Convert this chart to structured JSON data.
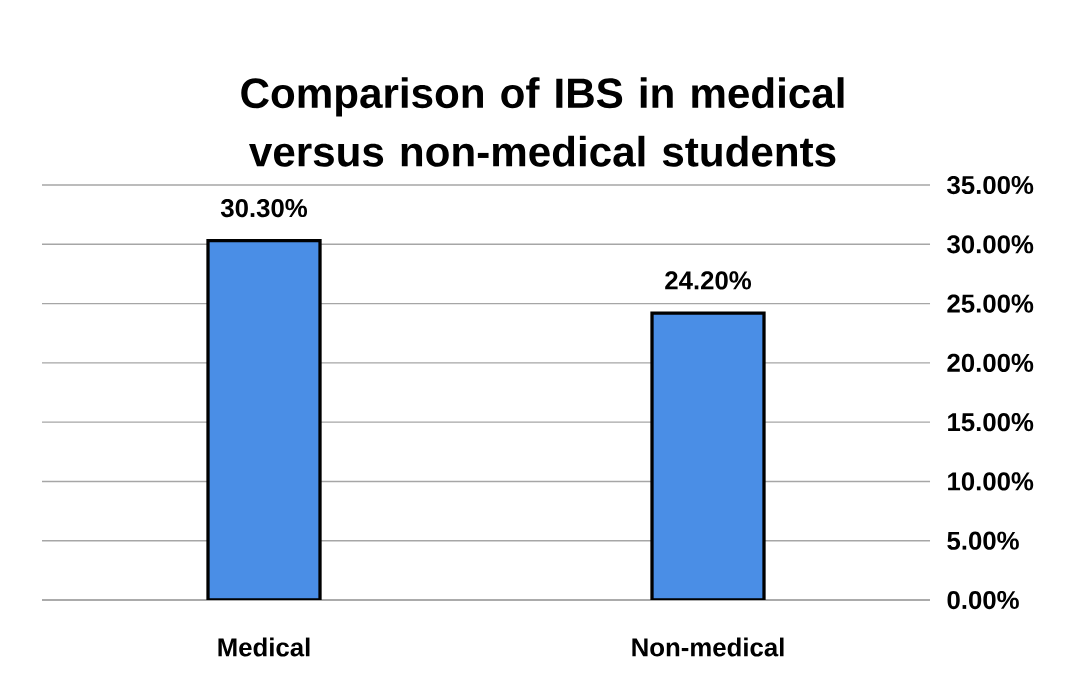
{
  "chart_data": {
    "type": "bar",
    "title": "Comparison of IBS in medical versus non-medical students",
    "categories": [
      "Medical",
      "Non-medical"
    ],
    "values": [
      30.3,
      24.2
    ],
    "value_labels": [
      "30.30%",
      "24.20%"
    ],
    "color": "#4a8ee6",
    "ylim": [
      0,
      35
    ],
    "yticks": [
      {
        "value": 0,
        "label": "0.00%"
      },
      {
        "value": 5,
        "label": "5.00%"
      },
      {
        "value": 10,
        "label": "10.00%"
      },
      {
        "value": 15,
        "label": "15.00%"
      },
      {
        "value": 20,
        "label": "20.00%"
      },
      {
        "value": 25,
        "label": "25.00%"
      },
      {
        "value": 30,
        "label": "30.00%"
      },
      {
        "value": 35,
        "label": "35.00%"
      }
    ],
    "grid": "y"
  }
}
